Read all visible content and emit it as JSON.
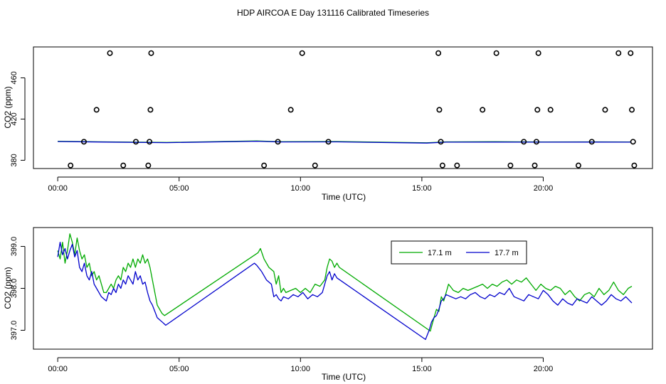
{
  "chart_data": [
    {
      "type": "scatter",
      "title": "HDP AIRCOA E  Day 131116  Calibrated Timeseries",
      "xlabel": "Time (UTC)",
      "ylabel": "CO2 (ppm)",
      "xlim": [
        -1,
        24.5
      ],
      "ylim": [
        372,
        490
      ],
      "x_ticks": [
        0,
        5,
        10,
        15,
        20
      ],
      "x_tick_labels": [
        "00:00",
        "05:00",
        "10:00",
        "15:00",
        "20:00"
      ],
      "y_ticks": [
        380,
        420,
        460
      ],
      "y_tick_labels": [
        "380",
        "420",
        "460"
      ],
      "grid": false,
      "colors": {
        "line": "#0000cc",
        "line_alt": "#00aa00",
        "points": "#000000"
      },
      "calibration_points": [
        {
          "x": 0.53,
          "y": 375
        },
        {
          "x": 1.08,
          "y": 398
        },
        {
          "x": 1.6,
          "y": 429
        },
        {
          "x": 2.15,
          "y": 484
        },
        {
          "x": 2.7,
          "y": 375
        },
        {
          "x": 3.22,
          "y": 398
        },
        {
          "x": 3.73,
          "y": 375
        },
        {
          "x": 3.78,
          "y": 398
        },
        {
          "x": 3.82,
          "y": 429
        },
        {
          "x": 3.85,
          "y": 484
        },
        {
          "x": 8.5,
          "y": 375
        },
        {
          "x": 9.07,
          "y": 398
        },
        {
          "x": 9.6,
          "y": 429
        },
        {
          "x": 10.07,
          "y": 484
        },
        {
          "x": 10.6,
          "y": 375
        },
        {
          "x": 11.15,
          "y": 398
        },
        {
          "x": 15.68,
          "y": 484
        },
        {
          "x": 15.72,
          "y": 429
        },
        {
          "x": 15.78,
          "y": 398
        },
        {
          "x": 15.85,
          "y": 375
        },
        {
          "x": 16.45,
          "y": 375
        },
        {
          "x": 17.5,
          "y": 429
        },
        {
          "x": 18.07,
          "y": 484
        },
        {
          "x": 18.65,
          "y": 375
        },
        {
          "x": 19.2,
          "y": 398
        },
        {
          "x": 19.65,
          "y": 375
        },
        {
          "x": 19.72,
          "y": 398
        },
        {
          "x": 19.76,
          "y": 429
        },
        {
          "x": 19.8,
          "y": 484
        },
        {
          "x": 20.3,
          "y": 429
        },
        {
          "x": 21.45,
          "y": 375
        },
        {
          "x": 22.0,
          "y": 398
        },
        {
          "x": 22.55,
          "y": 429
        },
        {
          "x": 23.1,
          "y": 484
        },
        {
          "x": 23.6,
          "y": 484
        },
        {
          "x": 23.65,
          "y": 429
        },
        {
          "x": 23.7,
          "y": 398
        },
        {
          "x": 23.75,
          "y": 375
        }
      ],
      "series": [
        {
          "name": "17.1 m",
          "color": "#00aa00",
          "x": [
            0,
            2,
            4.5,
            8.2,
            9.2,
            11.5,
            15.2,
            16,
            18,
            20,
            22,
            23.6
          ],
          "y": [
            398.4,
            397.9,
            397.3,
            398.8,
            398.0,
            398.2,
            397.0,
            397.9,
            398.0,
            397.8,
            397.9,
            397.8
          ]
        },
        {
          "name": "17.7 m",
          "color": "#0000cc",
          "x": [
            0,
            2,
            4.5,
            8.2,
            9.2,
            11.5,
            15.2,
            16,
            18,
            20,
            22,
            23.6
          ],
          "y": [
            398.2,
            397.7,
            397.1,
            398.5,
            397.8,
            397.9,
            396.7,
            397.6,
            397.7,
            397.6,
            397.7,
            397.6
          ]
        }
      ]
    },
    {
      "type": "line",
      "title": "",
      "xlabel": "Time (UTC)",
      "ylabel": "CO2 (ppm)",
      "xlim": [
        -1,
        24.5
      ],
      "ylim": [
        396.55,
        399.45
      ],
      "x_ticks": [
        0,
        5,
        10,
        15,
        20
      ],
      "x_tick_labels": [
        "00:00",
        "05:00",
        "10:00",
        "15:00",
        "20:00"
      ],
      "y_ticks": [
        397,
        398,
        399
      ],
      "y_tick_labels": [
        "397.0",
        "398.0",
        "399.0"
      ],
      "grid": false,
      "legend": "top-right",
      "series": [
        {
          "name": "17.1 m",
          "color": "#00aa00",
          "x": [
            0,
            0.1,
            0.2,
            0.3,
            0.4,
            0.5,
            0.6,
            0.7,
            0.8,
            0.9,
            1.0,
            1.1,
            1.2,
            1.3,
            1.4,
            1.5,
            1.6,
            1.7,
            1.8,
            1.9,
            2.0,
            2.1,
            2.2,
            2.3,
            2.4,
            2.5,
            2.6,
            2.7,
            2.8,
            2.9,
            3.0,
            3.1,
            3.2,
            3.3,
            3.4,
            3.5,
            3.6,
            3.7,
            3.8,
            3.9,
            4.0,
            4.1,
            4.2,
            4.3,
            4.4,
            8.25,
            8.35,
            8.5,
            8.7,
            8.9,
            9.0,
            9.1,
            9.2,
            9.3,
            9.4,
            9.6,
            9.8,
            10.0,
            10.2,
            10.4,
            10.6,
            10.8,
            11.0,
            11.1,
            11.2,
            11.3,
            11.4,
            11.5,
            11.6,
            15.35,
            15.5,
            15.6,
            15.7,
            15.8,
            15.9,
            16.0,
            16.1,
            16.3,
            16.5,
            16.7,
            16.9,
            17.1,
            17.3,
            17.5,
            17.7,
            17.9,
            18.1,
            18.3,
            18.5,
            18.7,
            18.9,
            19.1,
            19.3,
            19.5,
            19.7,
            19.9,
            20.1,
            20.3,
            20.5,
            20.7,
            20.9,
            21.1,
            21.3,
            21.5,
            21.7,
            21.9,
            22.1,
            22.3,
            22.5,
            22.7,
            22.9,
            23.1,
            23.3,
            23.5,
            23.65
          ],
          "y": [
            398.9,
            398.7,
            399.1,
            398.6,
            398.9,
            399.3,
            399.1,
            398.8,
            399.2,
            398.9,
            398.7,
            398.8,
            398.5,
            398.6,
            398.3,
            398.4,
            398.2,
            398.3,
            398.1,
            397.9,
            397.9,
            398.0,
            398.1,
            398.0,
            398.2,
            398.3,
            398.2,
            398.5,
            398.4,
            398.6,
            398.5,
            398.7,
            398.5,
            398.7,
            398.6,
            398.8,
            398.6,
            398.7,
            398.5,
            398.2,
            397.9,
            397.6,
            397.5,
            397.4,
            397.35,
            398.85,
            398.95,
            398.7,
            398.5,
            398.4,
            398.1,
            398.3,
            397.9,
            398.0,
            397.9,
            397.95,
            398.0,
            397.9,
            398.0,
            397.9,
            398.1,
            398.05,
            398.2,
            398.5,
            398.7,
            398.65,
            398.5,
            398.6,
            398.5,
            396.98,
            397.3,
            397.5,
            397.45,
            397.8,
            397.7,
            397.9,
            398.1,
            397.95,
            397.9,
            398.0,
            397.95,
            398.0,
            398.05,
            398.1,
            398.0,
            398.1,
            398.05,
            398.15,
            398.2,
            398.1,
            398.2,
            398.15,
            398.25,
            398.1,
            397.95,
            398.1,
            398.0,
            397.95,
            398.05,
            398.0,
            397.85,
            397.95,
            397.8,
            397.7,
            397.85,
            397.9,
            397.8,
            398.0,
            397.85,
            397.95,
            398.15,
            397.95,
            397.85,
            398.0,
            398.05
          ]
        },
        {
          "name": "17.7 m",
          "color": "#0000cc",
          "x": [
            0,
            0.1,
            0.2,
            0.3,
            0.4,
            0.5,
            0.6,
            0.7,
            0.8,
            0.9,
            1.0,
            1.1,
            1.2,
            1.3,
            1.4,
            1.5,
            1.6,
            1.7,
            1.8,
            1.9,
            2.0,
            2.1,
            2.2,
            2.3,
            2.4,
            2.5,
            2.6,
            2.7,
            2.8,
            2.9,
            3.0,
            3.1,
            3.2,
            3.3,
            3.4,
            3.5,
            3.6,
            3.7,
            3.8,
            3.9,
            4.0,
            4.1,
            4.2,
            4.3,
            4.45,
            8.1,
            8.2,
            8.4,
            8.6,
            8.8,
            8.9,
            9.0,
            9.1,
            9.2,
            9.3,
            9.5,
            9.7,
            9.9,
            10.1,
            10.3,
            10.5,
            10.7,
            10.9,
            11.0,
            11.1,
            11.2,
            11.3,
            11.4,
            11.5,
            15.15,
            15.3,
            15.4,
            15.5,
            15.6,
            15.7,
            15.8,
            15.9,
            16.0,
            16.2,
            16.4,
            16.6,
            16.8,
            17.0,
            17.2,
            17.4,
            17.6,
            17.8,
            18.0,
            18.2,
            18.4,
            18.6,
            18.8,
            19.0,
            19.2,
            19.4,
            19.6,
            19.8,
            20.0,
            20.2,
            20.4,
            20.6,
            20.8,
            21.0,
            21.2,
            21.4,
            21.6,
            21.8,
            22.0,
            22.2,
            22.4,
            22.6,
            22.8,
            23.0,
            23.2,
            23.4,
            23.65
          ],
          "y": [
            398.75,
            399.1,
            398.8,
            398.95,
            398.7,
            398.9,
            399.05,
            398.75,
            398.9,
            398.5,
            398.4,
            398.6,
            398.3,
            398.2,
            398.4,
            398.1,
            398.0,
            397.9,
            397.8,
            397.75,
            397.7,
            397.9,
            397.85,
            398.0,
            397.9,
            398.1,
            398.0,
            398.2,
            398.1,
            398.3,
            398.2,
            398.1,
            398.4,
            398.2,
            398.3,
            398.1,
            398.15,
            397.9,
            397.7,
            397.6,
            397.45,
            397.3,
            397.25,
            397.2,
            397.12,
            398.6,
            398.55,
            398.4,
            398.2,
            398.1,
            397.8,
            397.85,
            397.75,
            397.7,
            397.8,
            397.75,
            397.85,
            397.8,
            397.9,
            397.75,
            397.85,
            397.8,
            397.9,
            398.1,
            398.3,
            398.4,
            398.2,
            398.35,
            398.25,
            396.78,
            397.0,
            397.2,
            397.3,
            397.35,
            397.5,
            397.7,
            397.75,
            397.85,
            397.8,
            397.75,
            397.8,
            397.75,
            397.85,
            397.9,
            397.8,
            397.75,
            397.85,
            397.8,
            397.9,
            397.85,
            398.0,
            397.8,
            397.75,
            397.7,
            397.85,
            397.8,
            397.75,
            397.95,
            397.85,
            397.7,
            397.6,
            397.75,
            397.65,
            397.6,
            397.75,
            397.7,
            397.65,
            397.8,
            397.7,
            397.6,
            397.7,
            397.85,
            397.75,
            397.7,
            397.8,
            397.65
          ]
        }
      ]
    }
  ]
}
